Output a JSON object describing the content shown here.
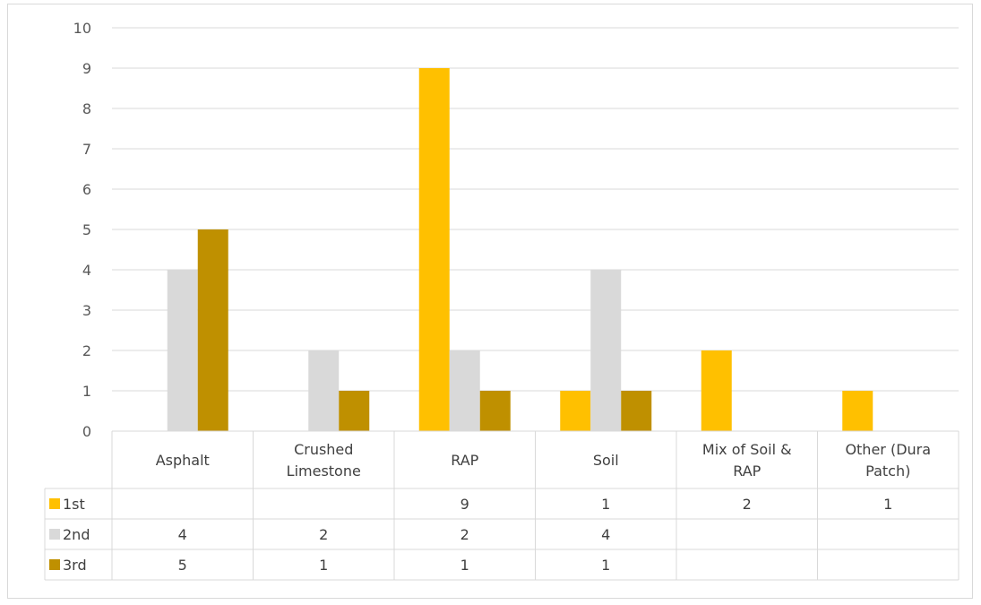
{
  "chart_data": {
    "type": "bar",
    "categories": [
      "Asphalt",
      "Crushed Limestone",
      "RAP",
      "Soil",
      "Mix of Soil & RAP",
      "Other (Dura Patch)"
    ],
    "category_lines": [
      [
        "Asphalt"
      ],
      [
        "Crushed",
        "Limestone"
      ],
      [
        "RAP"
      ],
      [
        "Soil"
      ],
      [
        "Mix of Soil &",
        "RAP"
      ],
      [
        "Other (Dura",
        "Patch)"
      ]
    ],
    "series": [
      {
        "name": "1st",
        "color": "#ffc000",
        "values": [
          null,
          null,
          9,
          1,
          2,
          1
        ]
      },
      {
        "name": "2nd",
        "color": "#d9d9d9",
        "values": [
          4,
          2,
          2,
          4,
          null,
          null
        ]
      },
      {
        "name": "3rd",
        "color": "#bf9000",
        "values": [
          5,
          1,
          1,
          1,
          null,
          null
        ]
      }
    ],
    "ylim": [
      0,
      10
    ],
    "yticks": [
      0,
      1,
      2,
      3,
      4,
      5,
      6,
      7,
      8,
      9,
      10
    ],
    "grid": true,
    "legend": "data-table",
    "xlabel": "",
    "ylabel": ""
  }
}
